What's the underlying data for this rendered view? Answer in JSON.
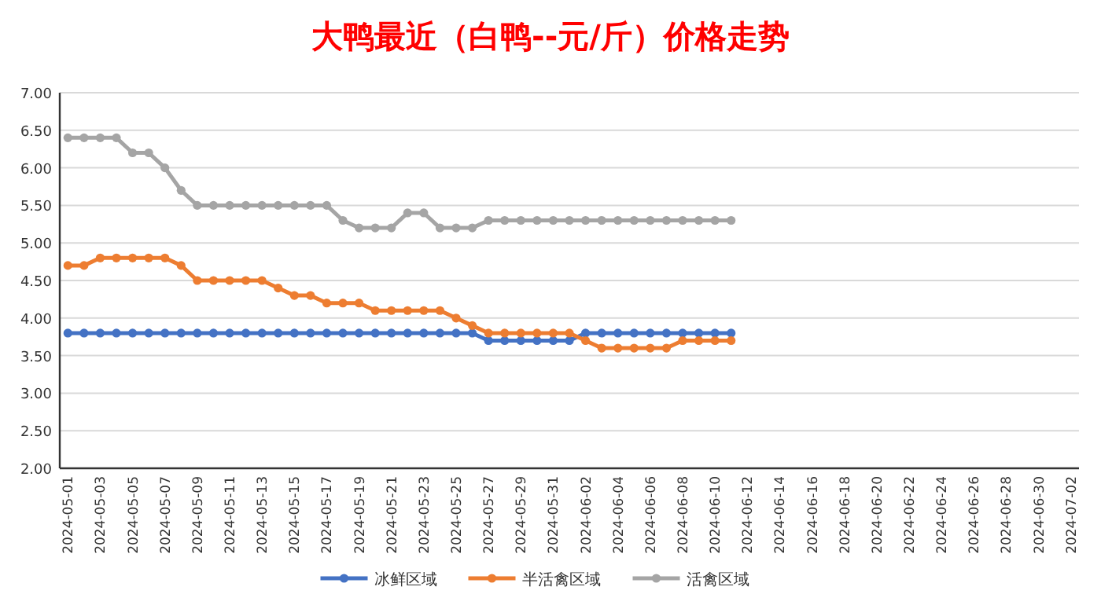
{
  "chart_data": {
    "type": "line",
    "title": "大鸭最近（白鸭--元/斤）价格走势",
    "categories": [
      "2024-05-01",
      null,
      "2024-05-03",
      null,
      "2024-05-05",
      null,
      "2024-05-07",
      null,
      "2024-05-09",
      null,
      "2024-05-11",
      null,
      "2024-05-13",
      null,
      "2024-05-15",
      null,
      "2024-05-17",
      null,
      "2024-05-19",
      null,
      "2024-05-21",
      null,
      "2024-05-23",
      null,
      "2024-05-25",
      null,
      "2024-05-27",
      null,
      "2024-05-29",
      null,
      "2024-05-31",
      null,
      "2024-06-02",
      null,
      "2024-06-04",
      null,
      "2024-06-06",
      null,
      "2024-06-08",
      null,
      "2024-06-10",
      null,
      "2024-06-12",
      null,
      "2024-06-14",
      null,
      "2024-06-16",
      null,
      "2024-06-18",
      null,
      "2024-06-20",
      null,
      "2024-06-22",
      null,
      "2024-06-24",
      null,
      "2024-06-26",
      null,
      "2024-06-28",
      null,
      "2024-06-30",
      null,
      "2024-07-02"
    ],
    "series": [
      {
        "name": "冰鲜区域",
        "color": "#4472c4",
        "values": [
          3.8,
          3.8,
          3.8,
          3.8,
          3.8,
          3.8,
          3.8,
          3.8,
          3.8,
          3.8,
          3.8,
          3.8,
          3.8,
          3.8,
          3.8,
          3.8,
          3.8,
          3.8,
          3.8,
          3.8,
          3.8,
          3.8,
          3.8,
          3.8,
          3.8,
          3.8,
          3.7,
          3.7,
          3.7,
          3.7,
          3.7,
          3.7,
          3.8,
          3.8,
          3.8,
          3.8,
          3.8,
          3.8,
          3.8,
          3.8,
          3.8,
          3.8,
          null,
          null,
          null,
          null,
          null,
          null,
          null,
          null,
          null,
          null,
          null,
          null,
          null,
          null,
          null,
          null,
          null,
          null,
          null,
          null,
          null
        ]
      },
      {
        "name": "半活禽区域",
        "color": "#ed7d31",
        "values": [
          4.7,
          4.7,
          4.8,
          4.8,
          4.8,
          4.8,
          4.8,
          4.7,
          4.5,
          4.5,
          4.5,
          4.5,
          4.5,
          4.4,
          4.3,
          4.3,
          4.2,
          4.2,
          4.2,
          4.1,
          4.1,
          4.1,
          4.1,
          4.1,
          4.0,
          3.9,
          3.8,
          3.8,
          3.8,
          3.8,
          3.8,
          3.8,
          3.7,
          3.6,
          3.6,
          3.6,
          3.6,
          3.6,
          3.7,
          3.7,
          3.7,
          3.7,
          null,
          null,
          null,
          null,
          null,
          null,
          null,
          null,
          null,
          null,
          null,
          null,
          null,
          null,
          null,
          null,
          null,
          null,
          null,
          null,
          null
        ]
      },
      {
        "name": "活禽区域",
        "color": "#a5a5a5",
        "values": [
          6.4,
          6.4,
          6.4,
          6.4,
          6.2,
          6.2,
          6.0,
          5.7,
          5.5,
          5.5,
          5.5,
          5.5,
          5.5,
          5.5,
          5.5,
          5.5,
          5.5,
          5.3,
          5.2,
          5.2,
          5.2,
          5.4,
          5.4,
          5.2,
          5.2,
          5.2,
          5.3,
          5.3,
          5.3,
          5.3,
          5.3,
          5.3,
          5.3,
          5.3,
          5.3,
          5.3,
          5.3,
          5.3,
          5.3,
          5.3,
          5.3,
          5.3,
          null,
          null,
          null,
          null,
          null,
          null,
          null,
          null,
          null,
          null,
          null,
          null,
          null,
          null,
          null,
          null,
          null,
          null,
          null,
          null,
          null
        ]
      }
    ],
    "ylim": [
      2,
      7
    ],
    "yticks": [
      {
        "value": 2,
        "label": "2.00"
      },
      {
        "value": 2.5,
        "label": "2.50"
      },
      {
        "value": 3,
        "label": "3.00"
      },
      {
        "value": 3.5,
        "label": "3.50"
      },
      {
        "value": 4,
        "label": "4.00"
      },
      {
        "value": 4.5,
        "label": "4.50"
      },
      {
        "value": 5,
        "label": "5.00"
      },
      {
        "value": 5.5,
        "label": "5.50"
      },
      {
        "value": 6,
        "label": "6.00"
      },
      {
        "value": 6.5,
        "label": "6.50"
      },
      {
        "value": 7,
        "label": "7.00"
      }
    ],
    "grid": "y",
    "legend": "bottom",
    "marker": "circle"
  }
}
